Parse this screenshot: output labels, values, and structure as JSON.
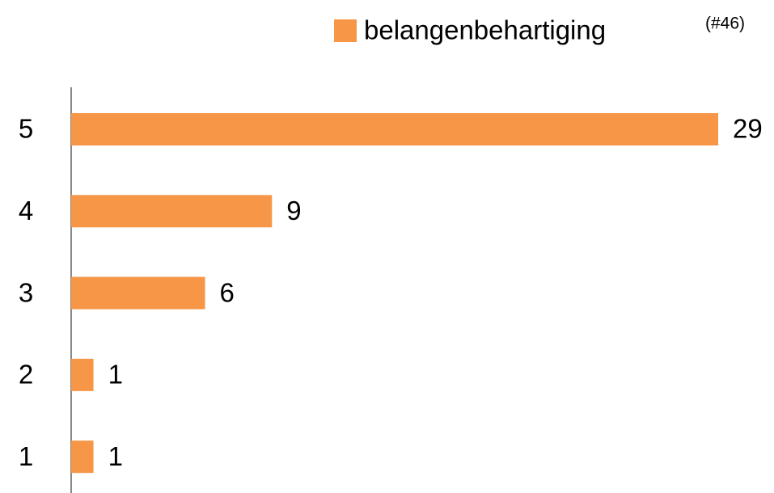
{
  "chart_data": {
    "type": "bar",
    "orientation": "horizontal",
    "categories": [
      "5",
      "4",
      "3",
      "2",
      "1"
    ],
    "series": [
      {
        "name": "belangenbehartiging",
        "note": "(#46)",
        "color": "#f79646",
        "values": [
          29,
          9,
          6,
          1,
          1
        ]
      }
    ]
  }
}
